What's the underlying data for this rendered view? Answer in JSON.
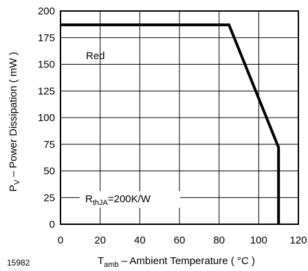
{
  "figure_id": "15982",
  "chart_data": {
    "type": "line",
    "xlabel_main": "T",
    "xlabel_sub": "amb",
    "xlabel_rest": " – Ambient Temperature ( °C )",
    "ylabel_main": "P",
    "ylabel_sub": "V",
    "ylabel_rest": " – Power Dissipation ( mW )",
    "xlim": [
      0,
      120
    ],
    "ylim": [
      0,
      200
    ],
    "xticks": [
      0,
      20,
      40,
      60,
      80,
      100,
      120
    ],
    "yticks": [
      0,
      25,
      50,
      75,
      100,
      125,
      150,
      175,
      200
    ],
    "grid": true,
    "series": [
      {
        "name": "Red",
        "x": [
          0,
          85,
          110,
          110
        ],
        "y": [
          187,
          187,
          72,
          0
        ]
      }
    ],
    "annotation": {
      "main": "R",
      "sub": "thJA",
      "rest": "=200K/W"
    }
  }
}
